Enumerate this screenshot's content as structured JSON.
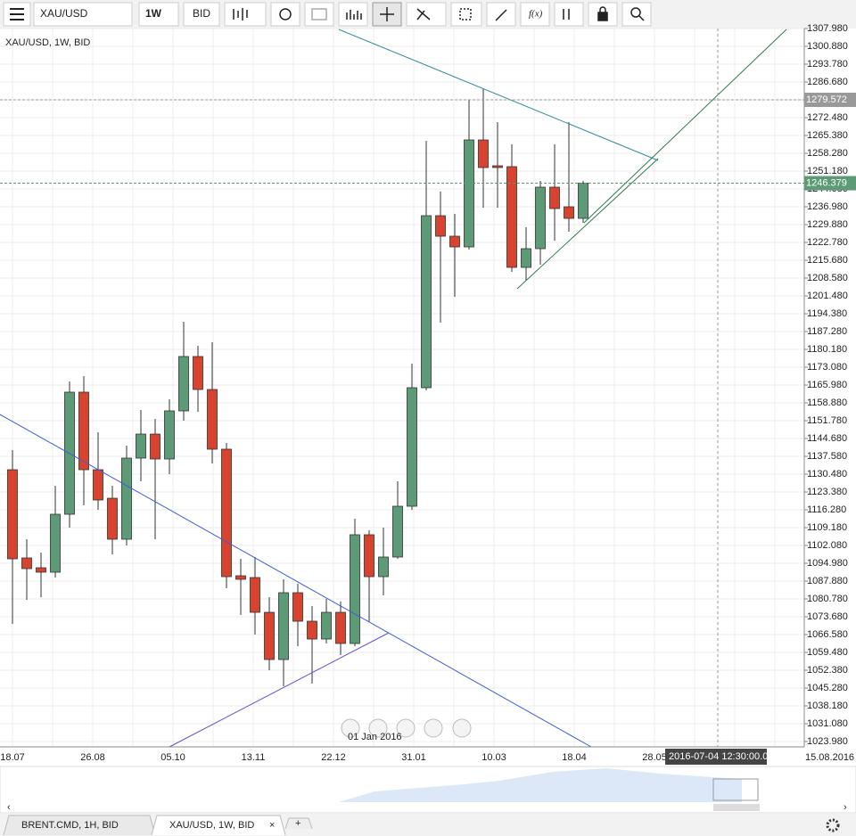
{
  "toolbar": {
    "instrument": "XAU/USD",
    "period": "1W",
    "side": "BID"
  },
  "chart_data": {
    "type": "candlestick",
    "title": "XAU/USD, 1W, BID",
    "up_color": "#5c9b76",
    "down_color": "#d8432f",
    "open": [
      1132.25,
      1097.11,
      1093.2,
      1091.43,
      1114.5,
      1163.14,
      1132.25,
      1120.89,
      1104.56,
      1136.87,
      1146.45,
      1136.51,
      1155.68,
      1177.34,
      1164.2,
      1140.42,
      1090.01,
      1089.3,
      1075.45,
      1056.64,
      1083.26,
      1071.9,
      1064.8,
      1075.45,
      1063.03,
      1106.34,
      1089.65,
      1097.46,
      1117.7,
      1164.91,
      1233.43,
      1225.26,
      1221.0,
      1263.6,
      1253.31,
      1252.96,
      1212.84,
      1220.29,
      1244.79,
      1236.98,
      1232.36
    ],
    "high": [
      1140.06,
      1104.56,
      1099.24,
      1125.86,
      1167.4,
      1169.53,
      1147.16,
      1125.86,
      1141.84,
      1156.04,
      1152.49,
      1160.3,
      1191.18,
      1181.6,
      1183.02,
      1142.9,
      1096.75,
      1097.46,
      1081.49,
      1088.59,
      1086.81,
      1077.94,
      1080.78,
      1079.71,
      1112.73,
      1108.11,
      1109.18,
      1127.64,
      1174.5,
      1263.25,
      1243.01,
      1234.14,
      1279.58,
      1283.84,
      1270.7,
      1261.83,
      1228.81,
      1247.27,
      1261.83,
      1270.7,
      1247.27
    ],
    "low": [
      1070.84,
      1080.42,
      1081.49,
      1089.3,
      1109.18,
      1118.05,
      1116.28,
      1098.53,
      1102.08,
      1127.64,
      1104.56,
      1130.48,
      1151.78,
      1155.33,
      1134.74,
      1085.04,
      1074.39,
      1066.58,
      1052.38,
      1045.99,
      1061.96,
      1047.05,
      1063.03,
      1058.41,
      1061.96,
      1071.55,
      1082.2,
      1096.75,
      1116.28,
      1163.85,
      1190.83,
      1201.12,
      1219.94,
      1236.62,
      1236.62,
      1211.06,
      1207.51,
      1213.9,
      1223.49,
      1227.04,
      1230.59
    ],
    "close": [
      1096.75,
      1092.85,
      1091.43,
      1114.5,
      1163.14,
      1132.25,
      1120.18,
      1104.56,
      1136.87,
      1146.45,
      1136.51,
      1155.68,
      1177.34,
      1164.2,
      1140.42,
      1089.65,
      1088.59,
      1075.45,
      1056.64,
      1083.26,
      1071.9,
      1064.8,
      1075.45,
      1063.03,
      1106.34,
      1089.65,
      1097.46,
      1117.7,
      1164.91,
      1233.43,
      1225.26,
      1221.0,
      1263.6,
      1252.6,
      1252.6,
      1212.84,
      1220.29,
      1244.79,
      1236.27,
      1232.36,
      1246.38
    ],
    "ylim": [
      1021.85,
      1307.98
    ],
    "yticks": [
      {
        "value": 1023.98,
        "label": "1023.980"
      },
      {
        "value": 1031.08,
        "label": "1031.080"
      },
      {
        "value": 1038.18,
        "label": "1038.180"
      },
      {
        "value": 1045.28,
        "label": "1045.280"
      },
      {
        "value": 1052.38,
        "label": "1052.380"
      },
      {
        "value": 1059.48,
        "label": "1059.480"
      },
      {
        "value": 1066.58,
        "label": "1066.580"
      },
      {
        "value": 1073.68,
        "label": "1073.680"
      },
      {
        "value": 1080.78,
        "label": "1080.780"
      },
      {
        "value": 1087.88,
        "label": "1087.880"
      },
      {
        "value": 1094.98,
        "label": "1094.980"
      },
      {
        "value": 1102.08,
        "label": "1102.080"
      },
      {
        "value": 1109.18,
        "label": "1109.180"
      },
      {
        "value": 1116.28,
        "label": "1116.280"
      },
      {
        "value": 1123.38,
        "label": "1123.380"
      },
      {
        "value": 1130.48,
        "label": "1130.480"
      },
      {
        "value": 1137.58,
        "label": "1137.580"
      },
      {
        "value": 1144.68,
        "label": "1144.680"
      },
      {
        "value": 1151.78,
        "label": "1151.780"
      },
      {
        "value": 1158.88,
        "label": "1158.880"
      },
      {
        "value": 1165.98,
        "label": "1165.980"
      },
      {
        "value": 1173.08,
        "label": "1173.080"
      },
      {
        "value": 1180.18,
        "label": "1180.180"
      },
      {
        "value": 1187.28,
        "label": "1187.280"
      },
      {
        "value": 1194.38,
        "label": "1194.380"
      },
      {
        "value": 1201.48,
        "label": "1201.480"
      },
      {
        "value": 1208.58,
        "label": "1208.580"
      },
      {
        "value": 1215.68,
        "label": "1215.680"
      },
      {
        "value": 1222.78,
        "label": "1222.780"
      },
      {
        "value": 1229.88,
        "label": "1229.880"
      },
      {
        "value": 1236.98,
        "label": "1236.980"
      },
      {
        "value": 1244.08,
        "label": "1244.080"
      },
      {
        "value": 1251.18,
        "label": "1251.180"
      },
      {
        "value": 1258.28,
        "label": "1258.280"
      },
      {
        "value": 1265.38,
        "label": "1265.380"
      },
      {
        "value": 1272.48,
        "label": "1272.480"
      },
      {
        "value": 1279.58,
        "label": "1279.580"
      },
      {
        "value": 1286.68,
        "label": "1286.680"
      },
      {
        "value": 1293.78,
        "label": "1293.780"
      },
      {
        "value": 1300.88,
        "label": "1300.880"
      },
      {
        "value": 1307.98,
        "label": "1307.980"
      }
    ],
    "grid": true,
    "price_lines": [
      {
        "value": 1279.572,
        "color": "#999999"
      },
      {
        "value": 1246.379,
        "color": "#5c9b76"
      }
    ],
    "x_labels": [
      "18.07",
      "26.08",
      "05.10",
      "13.11",
      "22.12",
      "31.01",
      "10.03",
      "18.04",
      "28.05"
    ],
    "x_end_label": "15.08.2016",
    "crosshair_time": "2016-07-04 12:30:00.0",
    "navigator_tooltip": "01 Jan 2016"
  },
  "tabs": [
    "BRENT.CMD, 1H, BID",
    "XAU/USD, 1W, BID"
  ]
}
